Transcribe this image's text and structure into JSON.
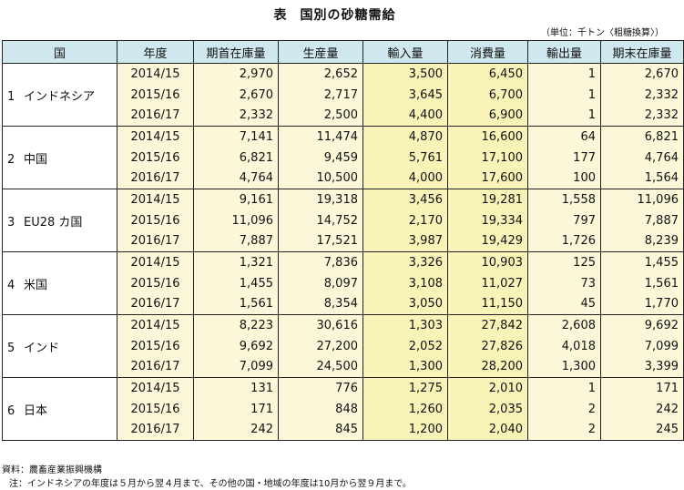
{
  "title": {
    "label": "表",
    "text": "国別の砂糖需給"
  },
  "unit": "（単位：千トン〈粗糖換算〉）",
  "headers": [
    "国",
    "年度",
    "期首在庫量",
    "生産量",
    "輸入量",
    "消費量",
    "輸出量",
    "期末在庫量"
  ],
  "groups": [
    {
      "num": "1",
      "name": "インドネシア",
      "rows": [
        {
          "year": "2014/15",
          "v": [
            "2,970",
            "2,652",
            "3,500",
            "6,450",
            "1",
            "2,670"
          ]
        },
        {
          "year": "2015/16",
          "v": [
            "2,670",
            "2,717",
            "3,645",
            "6,700",
            "1",
            "2,332"
          ]
        },
        {
          "year": "2016/17",
          "v": [
            "2,332",
            "2,500",
            "4,400",
            "6,900",
            "1",
            "2,332"
          ]
        }
      ]
    },
    {
      "num": "2",
      "name": "中国",
      "rows": [
        {
          "year": "2014/15",
          "v": [
            "7,141",
            "11,474",
            "4,870",
            "16,600",
            "64",
            "6,821"
          ]
        },
        {
          "year": "2015/16",
          "v": [
            "6,821",
            "9,459",
            "5,761",
            "17,100",
            "177",
            "4,764"
          ]
        },
        {
          "year": "2016/17",
          "v": [
            "4,764",
            "10,500",
            "4,000",
            "17,600",
            "100",
            "1,564"
          ]
        }
      ]
    },
    {
      "num": "3",
      "name": "EU28 カ国",
      "rows": [
        {
          "year": "2014/15",
          "v": [
            "9,161",
            "19,318",
            "3,456",
            "19,281",
            "1,558",
            "11,096"
          ]
        },
        {
          "year": "2015/16",
          "v": [
            "11,096",
            "14,752",
            "2,170",
            "19,334",
            "797",
            "7,887"
          ]
        },
        {
          "year": "2016/17",
          "v": [
            "7,887",
            "17,521",
            "3,987",
            "19,429",
            "1,726",
            "8,239"
          ]
        }
      ]
    },
    {
      "num": "4",
      "name": "米国",
      "rows": [
        {
          "year": "2014/15",
          "v": [
            "1,321",
            "7,836",
            "3,326",
            "10,903",
            "125",
            "1,455"
          ]
        },
        {
          "year": "2015/16",
          "v": [
            "1,455",
            "8,097",
            "3,108",
            "11,027",
            "73",
            "1,561"
          ]
        },
        {
          "year": "2016/17",
          "v": [
            "1,561",
            "8,354",
            "3,050",
            "11,150",
            "45",
            "1,770"
          ]
        }
      ]
    },
    {
      "num": "5",
      "name": "インド",
      "rows": [
        {
          "year": "2014/15",
          "v": [
            "8,223",
            "30,616",
            "1,303",
            "27,842",
            "2,608",
            "9,692"
          ]
        },
        {
          "year": "2015/16",
          "v": [
            "9,692",
            "27,200",
            "2,052",
            "27,826",
            "4,018",
            "7,099"
          ]
        },
        {
          "year": "2016/17",
          "v": [
            "7,099",
            "24,500",
            "1,300",
            "28,200",
            "1,300",
            "3,399"
          ]
        }
      ]
    },
    {
      "num": "6",
      "name": "日本",
      "rows": [
        {
          "year": "2014/15",
          "v": [
            "131",
            "776",
            "1,275",
            "2,010",
            "1",
            "171"
          ]
        },
        {
          "year": "2015/16",
          "v": [
            "171",
            "848",
            "1,260",
            "2,035",
            "2",
            "242"
          ]
        },
        {
          "year": "2016/17",
          "v": [
            "242",
            "845",
            "1,200",
            "2,040",
            "2",
            "245"
          ]
        }
      ]
    }
  ],
  "footer": {
    "source": "資料：農畜産業振興機構",
    "note": "注：インドネシアの年度は５月から翌４月まで、その他の国・地域の年度は10月から翌９月まで。"
  }
}
